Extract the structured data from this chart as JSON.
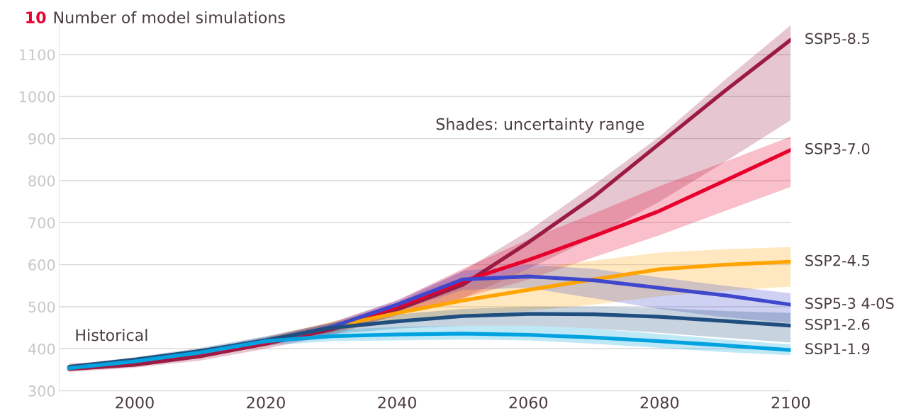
{
  "chart_data": {
    "type": "line",
    "title": "Number of model simulations",
    "annotations": [
      "10",
      "Historical",
      "Shades: uncertainty range"
    ],
    "x": [
      1990,
      2000,
      2010,
      2020,
      2030,
      2040,
      2050,
      2060,
      2070,
      2080,
      2090,
      2100
    ],
    "series": [
      {
        "name": "SSP5-8.5",
        "color": "#9b1b42",
        "values": [
          352,
          362,
          382,
          412,
          446,
          493,
          552,
          653,
          762,
          888,
          1014,
          1135
        ],
        "lower": [
          345,
          355,
          372,
          400,
          432,
          480,
          520,
          590,
          665,
          750,
          845,
          944
        ],
        "upper": [
          365,
          372,
          392,
          425,
          460,
          510,
          585,
          680,
          790,
          905,
          1040,
          1170
        ]
      },
      {
        "name": "SSP3-7.0",
        "color": "#e8002d",
        "values": [
          355,
          370,
          390,
          416,
          450,
          500,
          560,
          611,
          668,
          728,
          800,
          873
        ],
        "lower": [
          348,
          362,
          382,
          405,
          438,
          480,
          520,
          565,
          618,
          670,
          728,
          785
        ],
        "upper": [
          362,
          378,
          398,
          428,
          462,
          515,
          590,
          660,
          722,
          787,
          845,
          905
        ]
      },
      {
        "name": "SSP2-4.5",
        "color": "#ffa400",
        "values": [
          null,
          null,
          null,
          418,
          452,
          485,
          515,
          540,
          565,
          589,
          600,
          607
        ],
        "lower": [
          null,
          null,
          null,
          410,
          440,
          465,
          480,
          490,
          505,
          525,
          538,
          548
        ],
        "upper": [
          null,
          null,
          null,
          426,
          465,
          500,
          550,
          590,
          610,
          629,
          637,
          642
        ]
      },
      {
        "name": "SSP5-3 4-0S",
        "color": "#3f48cc",
        "values": [
          355,
          371,
          392,
          418,
          452,
          505,
          565,
          572,
          563,
          545,
          527,
          505
        ],
        "lower": [
          350,
          365,
          385,
          410,
          440,
          490,
          540,
          545,
          520,
          495,
          475,
          461
        ],
        "upper": [
          360,
          377,
          398,
          426,
          462,
          515,
          585,
          600,
          590,
          570,
          550,
          532
        ]
      },
      {
        "name": "SSP1-2.6",
        "color": "#1f4e7f",
        "values": [
          357,
          374,
          395,
          420,
          450,
          465,
          478,
          483,
          482,
          476,
          466,
          455
        ],
        "lower": [
          352,
          368,
          388,
          410,
          435,
          448,
          455,
          455,
          448,
          438,
          426,
          415
        ],
        "upper": [
          362,
          380,
          402,
          430,
          462,
          482,
          495,
          500,
          500,
          497,
          490,
          485
        ]
      },
      {
        "name": "SSP1-1.9",
        "color": "#00a3e0",
        "values": [
          354,
          370,
          391,
          418,
          430,
          434,
          436,
          433,
          427,
          418,
          408,
          397
        ],
        "lower": [
          349,
          364,
          384,
          408,
          418,
          420,
          422,
          420,
          412,
          402,
          392,
          385
        ],
        "upper": [
          359,
          376,
          398,
          428,
          445,
          452,
          455,
          455,
          448,
          435,
          422,
          410
        ]
      }
    ],
    "xlim": [
      1988.5,
      2100
    ],
    "ylim": [
      295,
      1175
    ],
    "xticks": [
      2000,
      2020,
      2040,
      2060,
      2080,
      2100
    ],
    "yticks": [
      300,
      400,
      500,
      600,
      700,
      800,
      900,
      1000,
      1100
    ],
    "grid": "y",
    "legend": false,
    "marker": "none",
    "line_style": "solid"
  }
}
